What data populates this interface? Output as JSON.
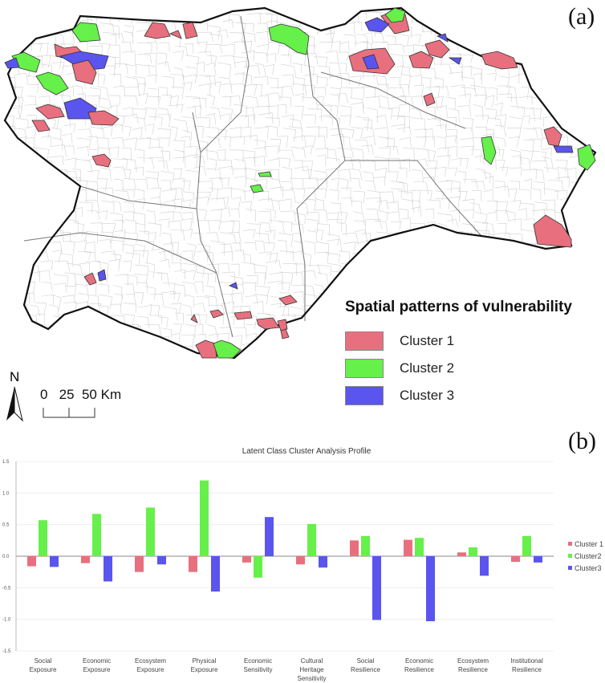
{
  "panel_a": {
    "label": "(a)",
    "legend": {
      "title": "Spatial patterns of vulnerability",
      "items": [
        {
          "label": "Cluster 1",
          "color": "#e8707e"
        },
        {
          "label": "Cluster 2",
          "color": "#66f04a"
        },
        {
          "label": "Cluster 3",
          "color": "#5a55ee"
        }
      ]
    },
    "north_arrow": "N",
    "scale_bar": "0   25  50 Km"
  },
  "panel_b": {
    "label": "(b)"
  },
  "chart_data": {
    "type": "bar",
    "title": "Latent Class Cluster Analysis Profile",
    "xlabel": "",
    "ylabel": "",
    "ylim": [
      -1.5,
      1.5
    ],
    "yticks": [
      "1.5",
      "1.0",
      "0.5",
      "0.0",
      "-0.5",
      "-1.0",
      "-1.5"
    ],
    "grid": true,
    "legend_position": "right",
    "categories": [
      [
        "Social",
        "Exposure"
      ],
      [
        "Economic",
        "Exposure"
      ],
      [
        "Ecosystem",
        "Exposure"
      ],
      [
        "Physical",
        "Exposure"
      ],
      [
        "Economic",
        "Sensitivity"
      ],
      [
        "Cultural",
        "Heritage",
        "Sensitivity"
      ],
      [
        "Social",
        "Resilience"
      ],
      [
        "Economic",
        "Resilience"
      ],
      [
        "Ecosystem",
        "Resilience"
      ],
      [
        "Institutional",
        "Resilience"
      ]
    ],
    "series": [
      {
        "name": "Cluster 1",
        "color": "#e8707e",
        "values": [
          -0.16,
          -0.11,
          -0.25,
          -0.25,
          -0.1,
          -0.13,
          0.25,
          0.26,
          0.06,
          -0.09
        ]
      },
      {
        "name": "Cluster2",
        "color": "#66f04a",
        "values": [
          0.57,
          0.67,
          0.77,
          1.2,
          -0.34,
          0.51,
          0.32,
          0.29,
          0.14,
          0.32
        ]
      },
      {
        "name": "Cluster3",
        "color": "#5a55ee",
        "values": [
          -0.17,
          -0.4,
          -0.13,
          -0.56,
          0.62,
          -0.18,
          -1.01,
          -1.03,
          -0.31,
          -0.1
        ]
      }
    ]
  }
}
